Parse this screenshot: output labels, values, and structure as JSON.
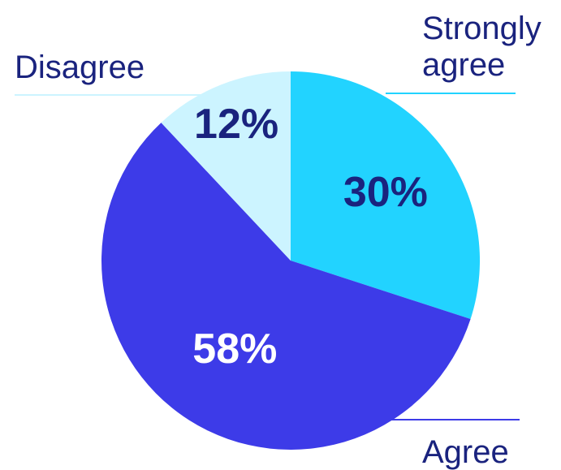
{
  "chart_data": {
    "type": "pie",
    "slices": [
      {
        "label": "Strongly agree",
        "label_lines": [
          "Strongly",
          "agree"
        ],
        "value": 30,
        "value_label": "30%",
        "color": "#22d3ff",
        "text_color": "#1a237e"
      },
      {
        "label": "Agree",
        "label_lines": [
          "Agree"
        ],
        "value": 58,
        "value_label": "58%",
        "color": "#3d3be8",
        "text_color": "#ffffff"
      },
      {
        "label": "Disagree",
        "label_lines": [
          "Disagree"
        ],
        "value": 12,
        "value_label": "12%",
        "color": "#ccf4ff",
        "text_color": "#1a237e"
      }
    ],
    "start": "12 o'clock",
    "direction": "clockwise",
    "legend": "outside labels with leader lines",
    "label_color": "#1a237e"
  }
}
